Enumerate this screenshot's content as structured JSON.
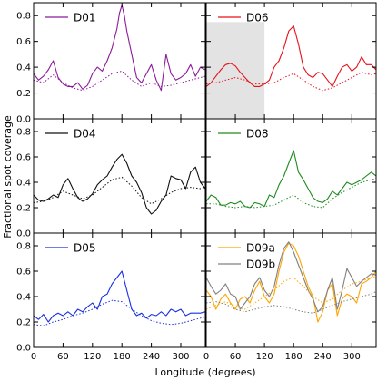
{
  "figure": {
    "ylabel": "Fractional spot coverage",
    "xlabel": "Longitude (degrees)"
  },
  "chart_data": {
    "type": "line",
    "grid": false,
    "xlim": [
      0,
      350
    ],
    "ylim": [
      0.0,
      0.9
    ],
    "xticks": [
      0,
      60,
      120,
      180,
      240,
      300
    ],
    "yticks": [
      0.0,
      0.2,
      0.4,
      0.6,
      0.8
    ],
    "panels": [
      {
        "id": "D01",
        "legend": [
          {
            "label": "D01",
            "color": "#8B1A9A"
          }
        ],
        "series": [
          {
            "name": "D01",
            "color": "#8B1A9A",
            "style": "solid",
            "x": [
              0,
              10,
              20,
              30,
              40,
              50,
              60,
              70,
              80,
              90,
              100,
              110,
              120,
              130,
              140,
              150,
              160,
              170,
              175,
              180,
              185,
              190,
              200,
              210,
              220,
              230,
              240,
              250,
              260,
              270,
              280,
              290,
              300,
              310,
              320,
              330,
              340,
              350
            ],
            "y": [
              0.35,
              0.3,
              0.33,
              0.38,
              0.45,
              0.32,
              0.27,
              0.25,
              0.25,
              0.28,
              0.23,
              0.26,
              0.35,
              0.4,
              0.37,
              0.45,
              0.55,
              0.7,
              0.82,
              0.88,
              0.8,
              0.68,
              0.5,
              0.32,
              0.28,
              0.35,
              0.42,
              0.3,
              0.22,
              0.5,
              0.35,
              0.3,
              0.32,
              0.35,
              0.42,
              0.33,
              0.4,
              0.38
            ]
          },
          {
            "name": "",
            "color": "#8B1A9A",
            "style": "dotted",
            "x": [
              0,
              20,
              40,
              60,
              80,
              100,
              120,
              140,
              160,
              180,
              200,
              220,
              240,
              260,
              280,
              300,
              320,
              340,
              350
            ],
            "y": [
              0.3,
              0.28,
              0.34,
              0.28,
              0.24,
              0.22,
              0.25,
              0.3,
              0.35,
              0.37,
              0.3,
              0.25,
              0.28,
              0.25,
              0.26,
              0.28,
              0.3,
              0.32,
              0.33
            ]
          }
        ]
      },
      {
        "id": "D06",
        "legend": [
          {
            "label": "D06",
            "color": "#E8101A"
          }
        ],
        "shaded_region": {
          "x": [
            0,
            120
          ]
        },
        "series": [
          {
            "name": "D06",
            "color": "#E8101A",
            "style": "solid",
            "x": [
              0,
              10,
              20,
              30,
              40,
              50,
              60,
              70,
              80,
              90,
              100,
              110,
              120,
              130,
              140,
              150,
              160,
              170,
              180,
              190,
              200,
              210,
              220,
              230,
              240,
              250,
              260,
              270,
              280,
              290,
              300,
              310,
              320,
              330,
              340,
              350
            ],
            "y": [
              0.25,
              0.28,
              0.33,
              0.38,
              0.42,
              0.43,
              0.41,
              0.36,
              0.32,
              0.28,
              0.25,
              0.25,
              0.27,
              0.3,
              0.4,
              0.45,
              0.55,
              0.68,
              0.72,
              0.58,
              0.4,
              0.34,
              0.32,
              0.36,
              0.35,
              0.3,
              0.25,
              0.33,
              0.4,
              0.42,
              0.37,
              0.4,
              0.48,
              0.42,
              0.42,
              0.38
            ]
          },
          {
            "name": "",
            "color": "#E8101A",
            "style": "dotted",
            "x": [
              0,
              20,
              40,
              60,
              80,
              100,
              120,
              140,
              160,
              180,
              200,
              220,
              240,
              260,
              280,
              300,
              320,
              340,
              350
            ],
            "y": [
              0.27,
              0.28,
              0.3,
              0.32,
              0.3,
              0.27,
              0.27,
              0.28,
              0.32,
              0.35,
              0.3,
              0.25,
              0.22,
              0.24,
              0.28,
              0.32,
              0.36,
              0.34,
              0.35
            ]
          }
        ]
      },
      {
        "id": "D04",
        "legend": [
          {
            "label": "D04",
            "color": "#111111"
          }
        ],
        "series": [
          {
            "name": "D04",
            "color": "#111111",
            "style": "solid",
            "x": [
              0,
              10,
              20,
              30,
              40,
              50,
              60,
              70,
              80,
              90,
              100,
              110,
              120,
              130,
              140,
              150,
              160,
              170,
              180,
              190,
              200,
              210,
              220,
              230,
              240,
              250,
              260,
              270,
              280,
              290,
              300,
              310,
              320,
              330,
              340,
              350
            ],
            "y": [
              0.3,
              0.26,
              0.25,
              0.27,
              0.3,
              0.28,
              0.38,
              0.43,
              0.35,
              0.28,
              0.25,
              0.27,
              0.31,
              0.38,
              0.42,
              0.45,
              0.52,
              0.58,
              0.62,
              0.55,
              0.45,
              0.4,
              0.32,
              0.2,
              0.15,
              0.18,
              0.25,
              0.3,
              0.45,
              0.43,
              0.42,
              0.35,
              0.48,
              0.52,
              0.4,
              0.35
            ]
          },
          {
            "name": "",
            "color": "#111111",
            "style": "dotted",
            "x": [
              0,
              20,
              40,
              60,
              80,
              100,
              120,
              140,
              160,
              180,
              200,
              220,
              240,
              260,
              280,
              300,
              320,
              340,
              350
            ],
            "y": [
              0.24,
              0.25,
              0.28,
              0.33,
              0.3,
              0.27,
              0.3,
              0.36,
              0.42,
              0.44,
              0.37,
              0.28,
              0.23,
              0.27,
              0.32,
              0.35,
              0.36,
              0.35,
              0.36
            ]
          }
        ]
      },
      {
        "id": "D08",
        "legend": [
          {
            "label": "D08",
            "color": "#1F8A1F"
          }
        ],
        "series": [
          {
            "name": "D08",
            "color": "#1F8A1F",
            "style": "solid",
            "x": [
              0,
              10,
              20,
              30,
              40,
              50,
              60,
              70,
              80,
              90,
              100,
              110,
              120,
              130,
              140,
              150,
              160,
              170,
              180,
              190,
              200,
              210,
              220,
              230,
              240,
              250,
              260,
              270,
              280,
              290,
              300,
              310,
              320,
              330,
              340,
              350
            ],
            "y": [
              0.25,
              0.3,
              0.28,
              0.22,
              0.22,
              0.24,
              0.23,
              0.25,
              0.21,
              0.2,
              0.24,
              0.23,
              0.21,
              0.3,
              0.28,
              0.38,
              0.45,
              0.55,
              0.65,
              0.48,
              0.42,
              0.35,
              0.28,
              0.25,
              0.24,
              0.27,
              0.33,
              0.3,
              0.35,
              0.4,
              0.38,
              0.4,
              0.42,
              0.45,
              0.48,
              0.45
            ]
          },
          {
            "name": "",
            "color": "#1F8A1F",
            "style": "dotted",
            "x": [
              0,
              20,
              40,
              60,
              80,
              100,
              120,
              140,
              160,
              180,
              200,
              220,
              240,
              260,
              280,
              300,
              320,
              340,
              350
            ],
            "y": [
              0.23,
              0.23,
              0.21,
              0.2,
              0.21,
              0.2,
              0.21,
              0.22,
              0.26,
              0.3,
              0.24,
              0.21,
              0.2,
              0.27,
              0.32,
              0.36,
              0.4,
              0.42,
              0.43
            ]
          }
        ]
      },
      {
        "id": "D05",
        "legend": [
          {
            "label": "D05",
            "color": "#1A2FE0"
          }
        ],
        "series": [
          {
            "name": "D05",
            "color": "#1A2FE0",
            "style": "solid",
            "x": [
              0,
              10,
              20,
              30,
              40,
              50,
              60,
              70,
              80,
              90,
              100,
              110,
              120,
              130,
              140,
              150,
              160,
              170,
              180,
              190,
              200,
              210,
              220,
              230,
              240,
              250,
              260,
              270,
              280,
              290,
              300,
              310,
              320,
              330,
              340,
              350
            ],
            "y": [
              0.25,
              0.22,
              0.26,
              0.2,
              0.25,
              0.27,
              0.25,
              0.28,
              0.25,
              0.3,
              0.28,
              0.32,
              0.35,
              0.3,
              0.4,
              0.42,
              0.5,
              0.55,
              0.6,
              0.45,
              0.3,
              0.25,
              0.27,
              0.23,
              0.26,
              0.25,
              0.28,
              0.25,
              0.3,
              0.28,
              0.3,
              0.25,
              0.27,
              0.27,
              0.27,
              0.28
            ]
          },
          {
            "name": "",
            "color": "#1A2FE0",
            "style": "dotted",
            "x": [
              0,
              20,
              40,
              60,
              80,
              100,
              120,
              140,
              160,
              180,
              200,
              220,
              240,
              260,
              280,
              300,
              320,
              340,
              350
            ],
            "y": [
              0.18,
              0.17,
              0.2,
              0.22,
              0.25,
              0.27,
              0.3,
              0.34,
              0.37,
              0.36,
              0.3,
              0.25,
              0.21,
              0.19,
              0.18,
              0.19,
              0.21,
              0.23,
              0.24
            ]
          }
        ]
      },
      {
        "id": "D09",
        "legend": [
          {
            "label": "D09a",
            "color": "#FFA500"
          },
          {
            "label": "D09b",
            "color": "#808080"
          }
        ],
        "series": [
          {
            "name": "D09a",
            "color": "#FFA500",
            "style": "solid",
            "x": [
              0,
              10,
              20,
              30,
              40,
              50,
              60,
              70,
              80,
              90,
              100,
              110,
              120,
              130,
              140,
              150,
              160,
              170,
              180,
              190,
              200,
              210,
              220,
              230,
              240,
              250,
              260,
              270,
              280,
              290,
              300,
              310,
              320,
              330,
              340,
              350
            ],
            "y": [
              0.45,
              0.4,
              0.3,
              0.38,
              0.42,
              0.35,
              0.3,
              0.38,
              0.4,
              0.35,
              0.45,
              0.52,
              0.4,
              0.35,
              0.42,
              0.6,
              0.75,
              0.82,
              0.8,
              0.72,
              0.6,
              0.48,
              0.4,
              0.2,
              0.28,
              0.45,
              0.5,
              0.25,
              0.38,
              0.42,
              0.4,
              0.35,
              0.5,
              0.52,
              0.55,
              0.6
            ]
          },
          {
            "name": "D09b",
            "color": "#808080",
            "style": "solid",
            "x": [
              0,
              10,
              20,
              30,
              40,
              50,
              60,
              70,
              80,
              90,
              100,
              110,
              120,
              130,
              140,
              150,
              160,
              170,
              180,
              190,
              200,
              210,
              220,
              230,
              240,
              250,
              260,
              270,
              280,
              290,
              300,
              310,
              320,
              330,
              340,
              350
            ],
            "y": [
              0.55,
              0.48,
              0.42,
              0.45,
              0.5,
              0.42,
              0.4,
              0.3,
              0.35,
              0.4,
              0.5,
              0.55,
              0.45,
              0.4,
              0.48,
              0.65,
              0.78,
              0.83,
              0.75,
              0.65,
              0.55,
              0.45,
              0.38,
              0.28,
              0.32,
              0.45,
              0.55,
              0.3,
              0.45,
              0.62,
              0.55,
              0.48,
              0.52,
              0.55,
              0.58,
              0.57
            ]
          },
          {
            "name": "",
            "color": "#FFA500",
            "style": "dotted",
            "x": [
              0,
              20,
              40,
              60,
              80,
              100,
              120,
              140,
              160,
              180,
              200,
              220,
              240,
              260,
              280,
              300,
              320,
              340,
              350
            ],
            "y": [
              0.3,
              0.33,
              0.36,
              0.32,
              0.3,
              0.35,
              0.4,
              0.45,
              0.52,
              0.55,
              0.48,
              0.4,
              0.35,
              0.38,
              0.45,
              0.5,
              0.52,
              0.55,
              0.56
            ]
          },
          {
            "name": "",
            "color": "#808080",
            "style": "dotted",
            "x": [
              0,
              20,
              40,
              60,
              80,
              100,
              120,
              140,
              160,
              180,
              200,
              220,
              240,
              260,
              280,
              300,
              320,
              340,
              350
            ],
            "y": [
              0.35,
              0.36,
              0.34,
              0.3,
              0.28,
              0.3,
              0.32,
              0.33,
              0.32,
              0.3,
              0.28,
              0.27,
              0.3,
              0.33,
              0.36,
              0.38,
              0.4,
              0.42,
              0.44
            ]
          }
        ]
      }
    ]
  }
}
